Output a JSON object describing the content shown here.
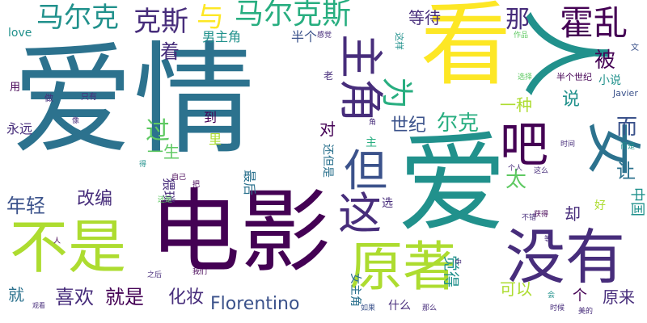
{
  "palette": {
    "dark_purple": "#440154",
    "indigo": "#472d7b",
    "blue": "#3b528b",
    "steel_blue": "#2c728e",
    "teal": "#21918c",
    "green": "#28ae80",
    "lime": "#5ec962",
    "yellow_green": "#addc30",
    "yellow": "#fde725"
  },
  "words": [
    {
      "text": "爱情",
      "color": "steel_blue"
    },
    {
      "text": "爱",
      "color": "teal"
    },
    {
      "text": "电影",
      "color": "dark_purple"
    },
    {
      "text": "看",
      "color": "yellow"
    },
    {
      "text": "人",
      "color": "teal"
    },
    {
      "text": "没有",
      "color": "indigo"
    },
    {
      "text": "不是",
      "color": "yellow_green"
    },
    {
      "text": "原著",
      "color": "yellow_green"
    },
    {
      "text": "女",
      "color": "steel_blue"
    },
    {
      "text": "主角",
      "color": "indigo"
    },
    {
      "text": "吧",
      "color": "dark_purple"
    },
    {
      "text": "但",
      "color": "blue"
    },
    {
      "text": "这",
      "color": "indigo"
    },
    {
      "text": "霍乱",
      "color": "dark_purple"
    },
    {
      "text": "马尔克斯",
      "color": "green"
    },
    {
      "text": "马尔克",
      "color": "teal"
    },
    {
      "text": "克斯",
      "color": "indigo"
    },
    {
      "text": "与",
      "color": "yellow"
    },
    {
      "text": "等待",
      "color": "indigo"
    },
    {
      "text": "那",
      "color": "indigo"
    },
    {
      "text": "为",
      "color": "green"
    },
    {
      "text": "着",
      "color": "indigo"
    },
    {
      "text": "男主角",
      "color": "teal"
    },
    {
      "text": "半个",
      "color": "blue"
    },
    {
      "text": "用",
      "color": "dark_purple"
    },
    {
      "text": "love",
      "color": "teal"
    },
    {
      "text": "被",
      "color": "dark_purple"
    },
    {
      "text": "说",
      "color": "teal"
    },
    {
      "text": "小说",
      "color": "teal"
    },
    {
      "text": "而",
      "color": "blue"
    },
    {
      "text": "太",
      "color": "lime"
    },
    {
      "text": "让",
      "color": "steel_blue"
    },
    {
      "text": "过",
      "color": "lime"
    },
    {
      "text": "一生",
      "color": "lime"
    },
    {
      "text": "对",
      "color": "dark_purple"
    },
    {
      "text": "世纪",
      "color": "blue"
    },
    {
      "text": "尔克",
      "color": "green"
    },
    {
      "text": "一种",
      "color": "yellow_green"
    },
    {
      "text": "永远",
      "color": "indigo"
    },
    {
      "text": "年轻",
      "color": "blue"
    },
    {
      "text": "改编",
      "color": "indigo"
    },
    {
      "text": "中国",
      "color": "teal"
    },
    {
      "text": "却",
      "color": "indigo"
    },
    {
      "text": "好",
      "color": "yellow_green"
    },
    {
      "text": "喜欢",
      "color": "indigo"
    },
    {
      "text": "就是",
      "color": "dark_purple"
    },
    {
      "text": "化妆",
      "color": "indigo"
    },
    {
      "text": "Florentino",
      "color": "blue"
    },
    {
      "text": "觉得",
      "color": "teal"
    },
    {
      "text": "可以",
      "color": "yellow_green"
    },
    {
      "text": "就",
      "color": "steel_blue"
    },
    {
      "text": "原来",
      "color": "indigo"
    },
    {
      "text": "个",
      "color": "dark_purple"
    },
    {
      "text": "女主角",
      "color": "steel_blue"
    },
    {
      "text": "到",
      "color": "dark_purple"
    },
    {
      "text": "里",
      "color": "yellow_green"
    },
    {
      "text": "猥琐",
      "color": "indigo"
    },
    {
      "text": "最后",
      "color": "steel_blue"
    },
    {
      "text": "还但是",
      "color": "steel_blue"
    },
    {
      "text": "选",
      "color": "indigo"
    },
    {
      "text": "什么",
      "color": "indigo"
    },
    {
      "text": "半个世纪",
      "color": "dark_purple"
    },
    {
      "text": "Javier",
      "color": "blue"
    },
    {
      "text": "这样",
      "color": "teal"
    },
    {
      "text": "老",
      "color": "indigo"
    },
    {
      "text": "做",
      "color": "indigo"
    },
    {
      "text": "只有",
      "color": "indigo"
    },
    {
      "text": "像",
      "color": "indigo"
    },
    {
      "text": "自己",
      "color": "dark_purple"
    },
    {
      "text": "把",
      "color": "dark_purple"
    },
    {
      "text": "得",
      "color": "teal"
    },
    {
      "text": "还是",
      "color": "lime"
    },
    {
      "text": "之后",
      "color": "indigo"
    },
    {
      "text": "我们",
      "color": "dark_purple"
    },
    {
      "text": "如果",
      "color": "blue"
    },
    {
      "text": "那么",
      "color": "indigo"
    },
    {
      "text": "时候",
      "color": "indigo"
    },
    {
      "text": "美的",
      "color": "indigo"
    },
    {
      "text": "会",
      "color": "teal"
    },
    {
      "text": "获得",
      "color": "dark_purple"
    },
    {
      "text": "不错",
      "color": "indigo"
    },
    {
      "text": "个人",
      "color": "indigo"
    },
    {
      "text": "这么",
      "color": "indigo"
    },
    {
      "text": "时间",
      "color": "indigo"
    },
    {
      "text": "而是",
      "color": "teal"
    },
    {
      "text": "选择",
      "color": "lime"
    },
    {
      "text": "作品",
      "color": "lime"
    },
    {
      "text": "感觉",
      "color": "indigo"
    },
    {
      "text": "主",
      "color": "green"
    },
    {
      "text": "角",
      "color": "indigo"
    },
    {
      "text": "中",
      "color": "indigo"
    },
    {
      "text": "等",
      "color": "indigo"
    },
    {
      "text": "观看",
      "color": "indigo"
    },
    {
      "text": "文",
      "color": "blue"
    },
    {
      "text": "人",
      "color": "dark_purple"
    }
  ]
}
